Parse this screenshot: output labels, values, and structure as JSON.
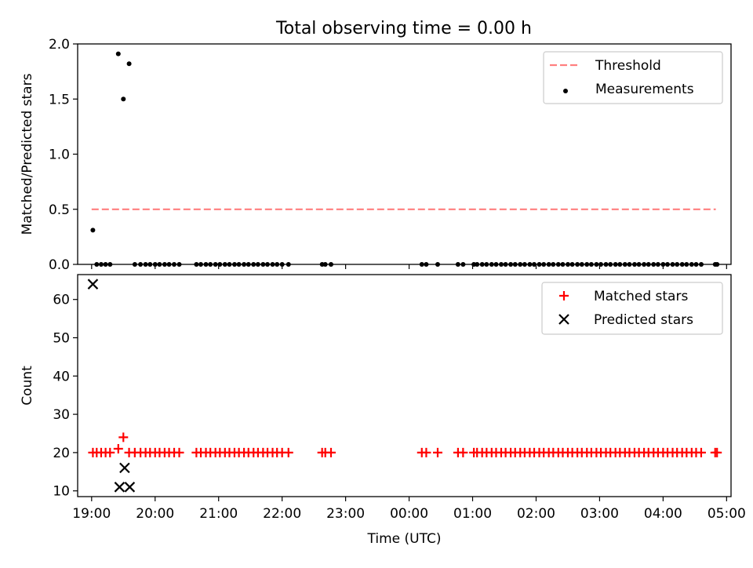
{
  "figure": {
    "title": "Total observing time = 0.00 h",
    "background": "#ffffff"
  },
  "chart_data": [
    {
      "type": "scatter",
      "panel": "top",
      "xlabel": "",
      "ylabel": "Matched/Predicted stars",
      "xlim": [
        18.78,
        29.07
      ],
      "ylim": [
        0,
        2.0
      ],
      "yticks": [
        0.0,
        0.5,
        1.0,
        1.5,
        2.0
      ],
      "ytick_labels": [
        "0.0",
        "0.5",
        "1.0",
        "1.5",
        "2.0"
      ],
      "xticks": [
        19,
        20,
        21,
        22,
        23,
        24,
        25,
        26,
        27,
        28,
        29
      ],
      "show_xtick_labels": false,
      "grid": false,
      "legend": {
        "position": "top-right",
        "entries": [
          "Threshold",
          "Measurements"
        ]
      },
      "series": [
        {
          "name": "Threshold",
          "kind": "dashed-line",
          "color": "#ff7f7f",
          "x": [
            19.0,
            28.83
          ],
          "y": [
            0.5,
            0.5
          ]
        },
        {
          "name": "Measurements",
          "kind": "points",
          "color": "#000000",
          "x": [
            19.02,
            19.08,
            19.15,
            19.22,
            19.29,
            19.42,
            19.5,
            19.59,
            19.68,
            19.77,
            19.85,
            19.92,
            20.0,
            20.07,
            20.15,
            20.22,
            20.3,
            20.38,
            20.65,
            20.72,
            20.8,
            20.87,
            20.95,
            21.02,
            21.1,
            21.17,
            21.25,
            21.32,
            21.4,
            21.47,
            21.55,
            21.62,
            21.7,
            21.77,
            21.85,
            21.92,
            22.0,
            22.1,
            22.63,
            22.68,
            22.77,
            24.2,
            24.27,
            24.45,
            24.77,
            24.85,
            25.02,
            25.07,
            25.15,
            25.22,
            25.3,
            25.37,
            25.45,
            25.52,
            25.6,
            25.67,
            25.75,
            25.82,
            25.9,
            25.97,
            26.05,
            26.12,
            26.2,
            26.27,
            26.35,
            26.42,
            26.5,
            26.57,
            26.65,
            26.72,
            26.8,
            26.87,
            26.95,
            27.02,
            27.1,
            27.17,
            27.25,
            27.32,
            27.4,
            27.47,
            27.55,
            27.62,
            27.7,
            27.77,
            27.85,
            27.92,
            28.0,
            28.07,
            28.15,
            28.22,
            28.3,
            28.37,
            28.45,
            28.52,
            28.6,
            28.82,
            28.85
          ],
          "y": [
            0.31,
            0.0,
            0.0,
            0.0,
            0.0,
            1.91,
            1.5,
            1.82,
            0.0,
            0.0,
            0.0,
            0.0,
            0.0,
            0.0,
            0.0,
            0.0,
            0.0,
            0.0,
            0.0,
            0.0,
            0.0,
            0.0,
            0.0,
            0.0,
            0.0,
            0.0,
            0.0,
            0.0,
            0.0,
            0.0,
            0.0,
            0.0,
            0.0,
            0.0,
            0.0,
            0.0,
            0.0,
            0.0,
            0.0,
            0.0,
            0.0,
            0.0,
            0.0,
            0.0,
            0.0,
            0.0,
            0.0,
            0.0,
            0.0,
            0.0,
            0.0,
            0.0,
            0.0,
            0.0,
            0.0,
            0.0,
            0.0,
            0.0,
            0.0,
            0.0,
            0.0,
            0.0,
            0.0,
            0.0,
            0.0,
            0.0,
            0.0,
            0.0,
            0.0,
            0.0,
            0.0,
            0.0,
            0.0,
            0.0,
            0.0,
            0.0,
            0.0,
            0.0,
            0.0,
            0.0,
            0.0,
            0.0,
            0.0,
            0.0,
            0.0,
            0.0,
            0.0,
            0.0,
            0.0,
            0.0,
            0.0,
            0.0,
            0.0,
            0.0,
            0.0,
            0.0,
            0.0
          ]
        }
      ]
    },
    {
      "type": "scatter",
      "panel": "bottom",
      "xlabel": "Time (UTC)",
      "ylabel": "Count",
      "xlim": [
        18.78,
        29.07
      ],
      "ylim": [
        8.5,
        66.5
      ],
      "yticks": [
        10,
        20,
        30,
        40,
        50,
        60
      ],
      "ytick_labels": [
        "10",
        "20",
        "30",
        "40",
        "50",
        "60"
      ],
      "xticks": [
        19,
        20,
        21,
        22,
        23,
        24,
        25,
        26,
        27,
        28,
        29
      ],
      "xtick_labels": [
        "19:00",
        "20:00",
        "21:00",
        "22:00",
        "23:00",
        "00:00",
        "01:00",
        "02:00",
        "03:00",
        "04:00",
        "05:00"
      ],
      "grid": false,
      "legend": {
        "position": "top-right",
        "entries": [
          "Matched stars",
          "Predicted stars"
        ]
      },
      "series": [
        {
          "name": "Matched stars",
          "kind": "plus",
          "color": "#ff0000",
          "x": [
            19.02,
            19.08,
            19.15,
            19.22,
            19.29,
            19.42,
            19.5,
            19.59,
            19.68,
            19.77,
            19.85,
            19.92,
            20.0,
            20.07,
            20.15,
            20.22,
            20.3,
            20.38,
            20.65,
            20.72,
            20.8,
            20.87,
            20.95,
            21.02,
            21.1,
            21.17,
            21.25,
            21.32,
            21.4,
            21.47,
            21.55,
            21.62,
            21.7,
            21.77,
            21.85,
            21.92,
            22.0,
            22.1,
            22.63,
            22.68,
            22.77,
            24.2,
            24.27,
            24.45,
            24.77,
            24.85,
            25.02,
            25.07,
            25.15,
            25.22,
            25.3,
            25.37,
            25.45,
            25.52,
            25.6,
            25.67,
            25.75,
            25.82,
            25.9,
            25.97,
            26.05,
            26.12,
            26.2,
            26.27,
            26.35,
            26.42,
            26.5,
            26.57,
            26.65,
            26.72,
            26.8,
            26.87,
            26.95,
            27.02,
            27.1,
            27.17,
            27.25,
            27.32,
            27.4,
            27.47,
            27.55,
            27.62,
            27.7,
            27.77,
            27.85,
            27.92,
            28.0,
            28.07,
            28.15,
            28.22,
            28.3,
            28.37,
            28.45,
            28.52,
            28.6,
            28.82,
            28.85
          ],
          "y": [
            20,
            20,
            20,
            20,
            20,
            21,
            24,
            20,
            20,
            20,
            20,
            20,
            20,
            20,
            20,
            20,
            20,
            20,
            20,
            20,
            20,
            20,
            20,
            20,
            20,
            20,
            20,
            20,
            20,
            20,
            20,
            20,
            20,
            20,
            20,
            20,
            20,
            20,
            20,
            20,
            20,
            20,
            20,
            20,
            20,
            20,
            20,
            20,
            20,
            20,
            20,
            20,
            20,
            20,
            20,
            20,
            20,
            20,
            20,
            20,
            20,
            20,
            20,
            20,
            20,
            20,
            20,
            20,
            20,
            20,
            20,
            20,
            20,
            20,
            20,
            20,
            20,
            20,
            20,
            20,
            20,
            20,
            20,
            20,
            20,
            20,
            20,
            20,
            20,
            20,
            20,
            20,
            20,
            20,
            20,
            20,
            20
          ]
        },
        {
          "name": "Predicted stars",
          "kind": "x",
          "color": "#000000",
          "x": [
            19.02,
            19.44,
            19.52,
            19.6
          ],
          "y": [
            64,
            11,
            16,
            11
          ]
        }
      ]
    }
  ]
}
